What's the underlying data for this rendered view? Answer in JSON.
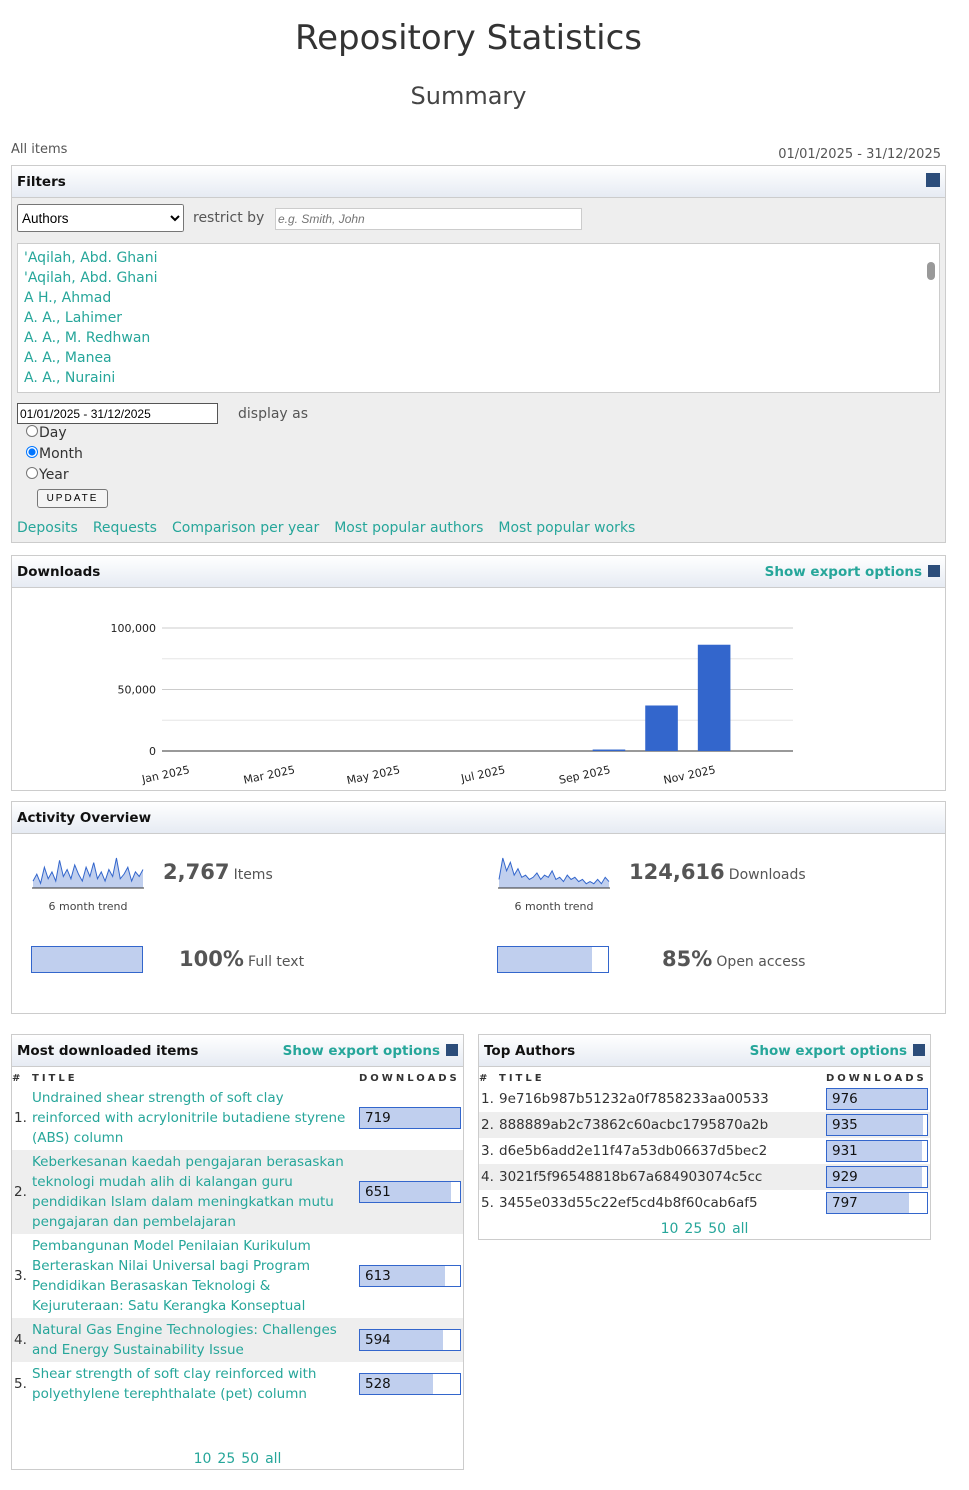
{
  "header": {
    "title": "Repository Statistics",
    "subtitle": "Summary"
  },
  "scope": "All items",
  "period": "01/01/2025 - 31/12/2025",
  "filters": {
    "title": "Filters",
    "field": "Authors",
    "restrict_label": "restrict by",
    "restrict_placeholder": "e.g. Smith, John",
    "authors": [
      "'Aqilah, Abd. Ghani",
      "'Aqilah, Abd. Ghani",
      "A H., Ahmad",
      "A. A., Lahimer",
      "A. A., M. Redhwan",
      "A. A., Manea",
      "A. A., Nuraini"
    ],
    "date_value": "01/01/2025 - 31/12/2025",
    "display_label": "display as",
    "display_options": [
      "Day",
      "Month",
      "Year"
    ],
    "display_selected": "Month",
    "update": "UPDATE",
    "links": [
      "Deposits",
      "Requests",
      "Comparison per year",
      "Most popular authors",
      "Most popular works"
    ]
  },
  "downloads_panel": {
    "title": "Downloads",
    "export": "Show export options"
  },
  "chart_data": {
    "type": "bar",
    "categories": [
      "Jan 2025",
      null,
      "Mar 2025",
      null,
      "May 2025",
      null,
      "Jul 2025",
      null,
      "Sep 2025",
      null,
      "Nov 2025",
      null
    ],
    "values": [
      0,
      0,
      0,
      0,
      0,
      0,
      0,
      0,
      1200,
      37000,
      86400,
      0
    ],
    "color": "#3366cc",
    "ylim": [
      0,
      100000
    ],
    "yticks": [
      0,
      {
        "value": 50000,
        "label": "50,000"
      },
      {
        "value": 100000,
        "label": "100,000"
      }
    ],
    "minor_grid": [
      25000,
      75000
    ],
    "grid": true
  },
  "activity": {
    "title": "Activity Overview",
    "items": {
      "count": "2,767",
      "label": "Items",
      "trend_label": "6 month trend",
      "trend": [
        3,
        6,
        2,
        9,
        4,
        7,
        3,
        12,
        5,
        8,
        4,
        10,
        6,
        3,
        9,
        5,
        11,
        4,
        7,
        3,
        8,
        5,
        13,
        4,
        6,
        9,
        3,
        7,
        5,
        8
      ]
    },
    "downloads": {
      "count": "124,616",
      "label": "Downloads",
      "trend_label": "6 month trend",
      "trend": [
        4,
        14,
        8,
        12,
        6,
        9,
        5,
        6,
        4,
        5,
        7,
        4,
        6,
        5,
        8,
        4,
        5,
        3,
        6,
        4,
        5,
        3,
        4,
        2,
        3,
        2,
        4,
        2,
        5,
        3
      ]
    },
    "full_text": {
      "percent": 100,
      "percent_label": "100%",
      "label": "Full text"
    },
    "open_access": {
      "percent": 85,
      "percent_label": "85%",
      "label": "Open access"
    }
  },
  "most_downloaded": {
    "title": "Most downloaded items",
    "export": "Show export options",
    "columns": [
      "#",
      "TITLE",
      "DOWNLOADS"
    ],
    "rows": [
      {
        "rank": "1.",
        "title": "Undrained shear strength of soft clay reinforced with acrylonitrile butadiene styrene (ABS) column",
        "downloads": 719
      },
      {
        "rank": "2.",
        "title": "Keberkesanan kaedah pengajaran berasaskan teknologi mudah alih di kalangan guru pendidikan Islam dalam meningkatkan mutu pengajaran dan pembelajaran",
        "downloads": 651
      },
      {
        "rank": "3.",
        "title": "Pembangunan Model Penilaian Kurikulum Berteraskan Nilai Universal bagi Program Pendidikan Berasaskan Teknologi & Kejuruteraan: Satu Kerangka Konseptual",
        "downloads": 613
      },
      {
        "rank": "4.",
        "title": "Natural Gas Engine Technologies: Challenges and Energy Sustainability Issue",
        "downloads": 594
      },
      {
        "rank": "5.",
        "title": "Shear strength of soft clay reinforced with polyethylene terephthalate (pet) column",
        "downloads": 528
      }
    ],
    "pager": [
      "10",
      "25",
      "50",
      "all"
    ]
  },
  "top_authors": {
    "title": "Top Authors",
    "export": "Show export options",
    "columns": [
      "#",
      "TITLE",
      "DOWNLOADS"
    ],
    "rows": [
      {
        "rank": "1.",
        "title": "9e716b987b51232a0f7858233aa00533",
        "downloads": 976
      },
      {
        "rank": "2.",
        "title": "888889ab2c73862c60acbc1795870a2b",
        "downloads": 935
      },
      {
        "rank": "3.",
        "title": "d6e5b6add2e11f47a53db06637d5bec2",
        "downloads": 931
      },
      {
        "rank": "4.",
        "title": "3021f5f96548818b67a684903074c5cc",
        "downloads": 929
      },
      {
        "rank": "5.",
        "title": "3455e033d55c22ef5cd4b8f60cab6af5",
        "downloads": 797
      }
    ],
    "pager": [
      "10",
      "25",
      "50",
      "all"
    ]
  }
}
